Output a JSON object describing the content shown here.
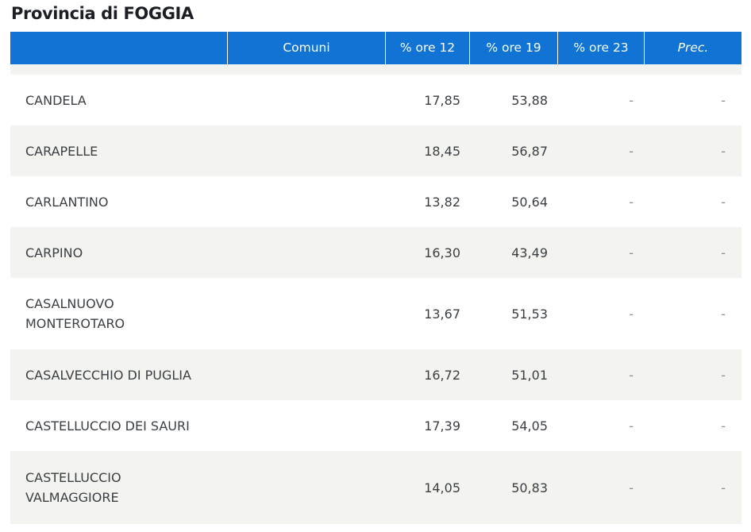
{
  "province": {
    "title": "Provincia di FOGGIA"
  },
  "table": {
    "headers": {
      "comune_blank": "",
      "comune": "Comuni",
      "ore12": "% ore 12",
      "ore19": "% ore 19",
      "ore23": "% ore 23",
      "prec": "Prec."
    },
    "rows": [
      {
        "comune": "CANDELA",
        "ore12": "17,85",
        "ore19": "53,88",
        "ore23": "-",
        "prec": "-"
      },
      {
        "comune": "CARAPELLE",
        "ore12": "18,45",
        "ore19": "56,87",
        "ore23": "-",
        "prec": "-"
      },
      {
        "comune": "CARLANTINO",
        "ore12": "13,82",
        "ore19": "50,64",
        "ore23": "-",
        "prec": "-"
      },
      {
        "comune": "CARPINO",
        "ore12": "16,30",
        "ore19": "43,49",
        "ore23": "-",
        "prec": "-"
      },
      {
        "comune": "CASALNUOVO\nMONTEROTARO",
        "ore12": "13,67",
        "ore19": "51,53",
        "ore23": "-",
        "prec": "-"
      },
      {
        "comune": "CASALVECCHIO DI PUGLIA",
        "ore12": "16,72",
        "ore19": "51,01",
        "ore23": "-",
        "prec": "-"
      },
      {
        "comune": "CASTELLUCCIO DEI SAURI",
        "ore12": "17,39",
        "ore19": "54,05",
        "ore23": "-",
        "prec": "-"
      },
      {
        "comune": "CASTELLUCCIO\nVALMAGGIORE",
        "ore12": "14,05",
        "ore19": "50,83",
        "ore23": "-",
        "prec": "-"
      }
    ]
  }
}
